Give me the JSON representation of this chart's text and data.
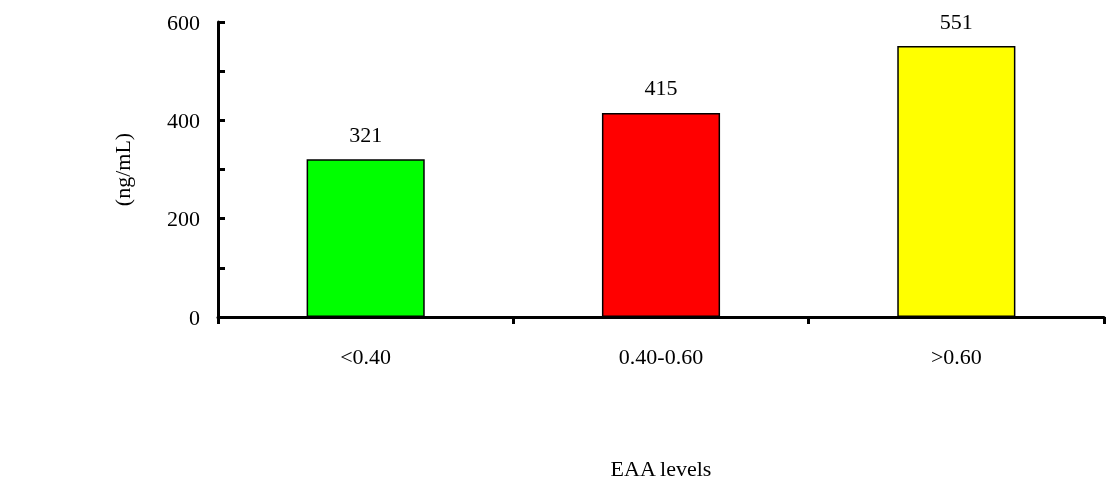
{
  "chart_data": {
    "type": "bar",
    "xlabel": "EAA levels",
    "ylabel": "(ng/mL)",
    "categories": [
      "<0.40",
      "0.40-0.60",
      ">0.60"
    ],
    "values": [
      321,
      415,
      551
    ],
    "colors": [
      "#00ff00",
      "#ff0000",
      "#ffff00"
    ],
    "ylim": [
      0,
      600
    ],
    "yticks": [
      0,
      {
        "value": 100,
        "label": null
      },
      200,
      {
        "value": 300,
        "label": null
      },
      400,
      {
        "value": 500,
        "label": null
      },
      600
    ],
    "data_labels": true,
    "grid": false
  }
}
